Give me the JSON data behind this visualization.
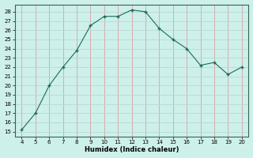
{
  "x": [
    4,
    5,
    6,
    7,
    8,
    9,
    10,
    11,
    12,
    13,
    14,
    15,
    16,
    17,
    18,
    19,
    20
  ],
  "y": [
    15.2,
    17.0,
    20.0,
    22.0,
    23.8,
    26.5,
    27.5,
    27.5,
    28.2,
    28.0,
    26.2,
    25.0,
    24.0,
    22.2,
    22.5,
    21.2,
    22.0
  ],
  "xlabel": "Humidex (Indice chaleur)",
  "xlim": [
    3.5,
    20.5
  ],
  "ylim": [
    14.5,
    28.8
  ],
  "yticks": [
    15,
    16,
    17,
    18,
    19,
    20,
    21,
    22,
    23,
    24,
    25,
    26,
    27,
    28
  ],
  "xticks": [
    4,
    5,
    6,
    7,
    8,
    9,
    10,
    11,
    12,
    13,
    14,
    15,
    16,
    17,
    18,
    19,
    20
  ],
  "line_color": "#1a6b5a",
  "marker": "+",
  "bg_color": "#cdf0ea",
  "grid_color_v": "#d8a0a0",
  "grid_color_h": "#b8d8d4"
}
